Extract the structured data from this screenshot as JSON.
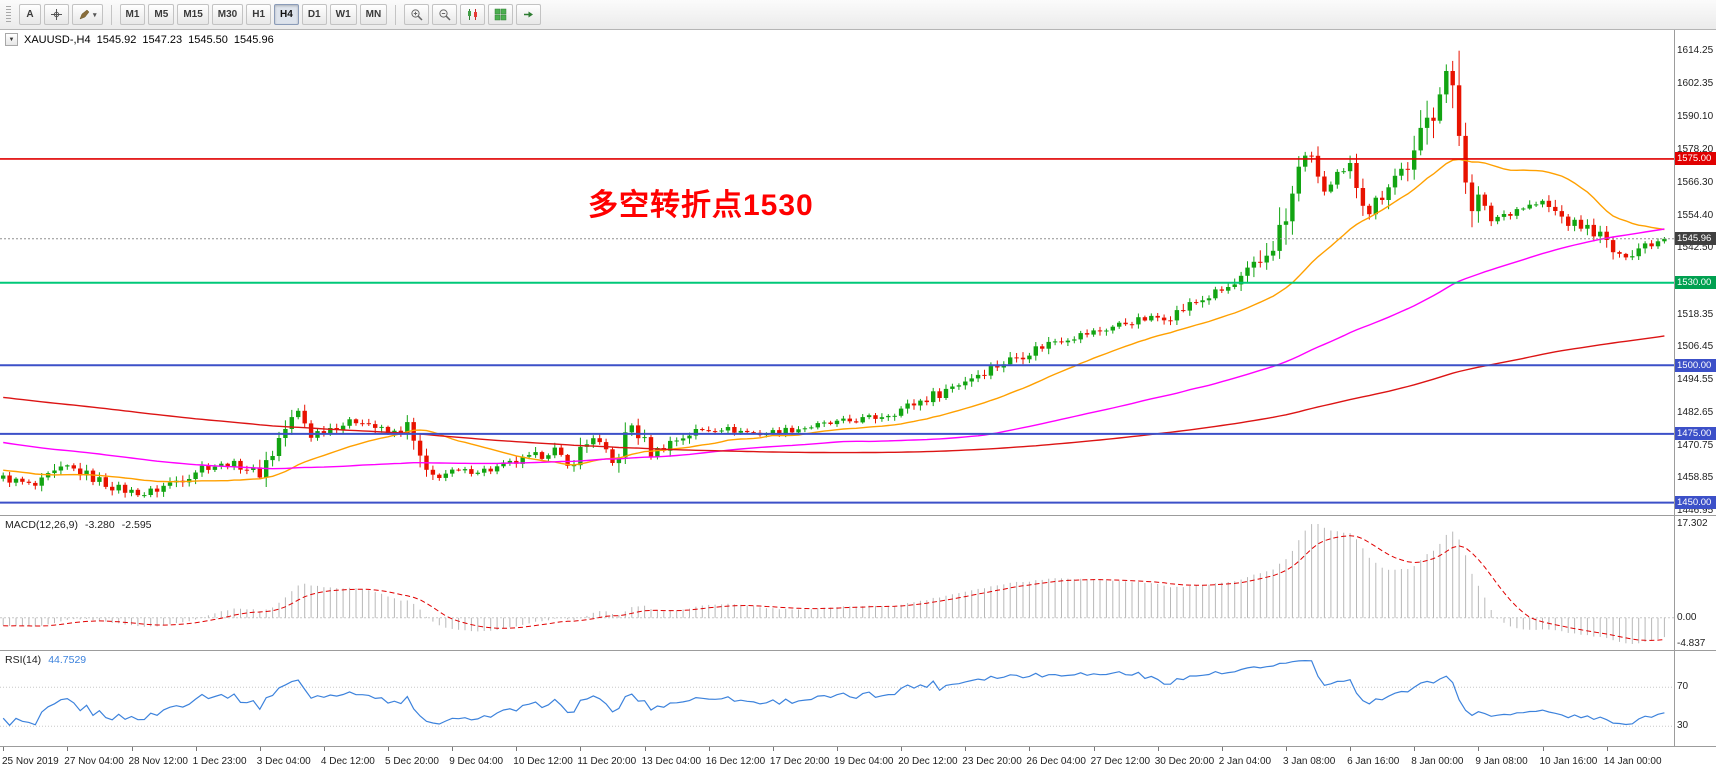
{
  "toolbar": {
    "text_tool_label": "A",
    "timeframes": [
      {
        "label": "M1",
        "active": false
      },
      {
        "label": "M5",
        "active": false
      },
      {
        "label": "M15",
        "active": false
      },
      {
        "label": "M30",
        "active": false
      },
      {
        "label": "H1",
        "active": false
      },
      {
        "label": "H4",
        "active": true
      },
      {
        "label": "D1",
        "active": false
      },
      {
        "label": "W1",
        "active": false
      },
      {
        "label": "MN",
        "active": false
      }
    ]
  },
  "chart": {
    "symbol_header": {
      "symbol": "XAUUSD-,H4",
      "open": "1545.92",
      "high": "1547.23",
      "low": "1545.50",
      "close": "1545.96"
    },
    "annotation": {
      "text": "多空转折点1530",
      "color": "#FF0000"
    }
  },
  "macd": {
    "header_label": "MACD(12,26,9)",
    "value_main": "-3.280",
    "value_signal": "-2.595",
    "axis_labels": [
      {
        "text": "17.302",
        "value": 17.302
      },
      {
        "text": "0.00",
        "value": 0
      },
      {
        "text": "-4.837",
        "value": -4.837
      }
    ],
    "colors": {
      "histogram": "#B8B8B8",
      "signal": "#E00000"
    }
  },
  "rsi": {
    "header_label": "RSI(14)",
    "value": "44.7529",
    "axis_labels": [
      {
        "text": "70",
        "value": 70
      },
      {
        "text": "30",
        "value": 30
      }
    ],
    "color": "#3C82DC",
    "level_color": "#C8C8C8"
  },
  "time_axis": {
    "step": 10,
    "labels": [
      "25 Nov 2019",
      "27 Nov 04:00",
      "28 Nov 12:00",
      "1 Dec 23:00",
      "3 Dec 04:00",
      "4 Dec 12:00",
      "5 Dec 20:00",
      "9 Dec 04:00",
      "10 Dec 12:00",
      "11 Dec 20:00",
      "13 Dec 04:00",
      "16 Dec 12:00",
      "17 Dec 20:00",
      "19 Dec 04:00",
      "20 Dec 12:00",
      "23 Dec 20:00",
      "26 Dec 04:00",
      "27 Dec 12:00",
      "30 Dec 20:00",
      "2 Jan 04:00",
      "3 Jan 08:00",
      "6 Jan 16:00",
      "8 Jan 00:00",
      "9 Jan 08:00",
      "10 Jan 16:00",
      "14 Jan 00:00"
    ]
  },
  "chart_data": {
    "type": "candlestick",
    "symbol": "XAUUSD",
    "timeframe": "H4",
    "last_price": 1545.96,
    "candle_count": 260,
    "colors": {
      "up": "#12A412",
      "down": "#E81200"
    },
    "price_axis": {
      "range": {
        "min": 1445.5,
        "max": 1621.9
      },
      "labels": [
        "1614.25",
        "1602.35",
        "1590.10",
        "1578.20",
        "1566.30",
        "1554.40",
        "1542.50",
        "1518.35",
        "1506.45",
        "1494.55",
        "1482.65",
        "1470.75",
        "1458.85",
        "1446.95"
      ],
      "badges": [
        {
          "text": "1575.00",
          "price": 1575.0,
          "color": "#E00000"
        },
        {
          "text": "1545.96",
          "price": 1545.96,
          "color": "#404040"
        },
        {
          "text": "1530.00",
          "price": 1530.0,
          "color": "#00A050"
        },
        {
          "text": "1500.00",
          "price": 1500.0,
          "color": "#3C50C8"
        },
        {
          "text": "1475.00",
          "price": 1475.0,
          "color": "#3C50C8"
        },
        {
          "text": "1450.00",
          "price": 1450.0,
          "color": "#3C50C8"
        }
      ]
    },
    "levels": [
      {
        "price": 1575.0,
        "color": "#E00000",
        "width": 1.6,
        "dash": ""
      },
      {
        "price": 1530.0,
        "color": "#00C878",
        "width": 2,
        "dash": ""
      },
      {
        "price": 1500.0,
        "color": "#3C50C8",
        "width": 2,
        "dash": ""
      },
      {
        "price": 1475.0,
        "color": "#3C50C8",
        "width": 2,
        "dash": ""
      },
      {
        "price": 1450.0,
        "color": "#3C50C8",
        "width": 2,
        "dash": ""
      },
      {
        "price": 1545.96,
        "color": "#909090",
        "width": 1,
        "dash": "2 2"
      }
    ],
    "moving_averages": [
      {
        "name": "ma-fast",
        "period": 24,
        "color": "#FFA000"
      },
      {
        "name": "ma-mid",
        "period": 89,
        "color": "#FF00FF"
      },
      {
        "name": "ma-slow",
        "period": 200,
        "color": "#DC1414"
      }
    ],
    "price_path": [
      [
        -200,
        1512
      ],
      [
        -160,
        1506
      ],
      [
        -120,
        1497
      ],
      [
        -80,
        1484
      ],
      [
        -50,
        1473
      ],
      [
        -20,
        1464
      ],
      [
        0,
        1459
      ],
      [
        5,
        1456
      ],
      [
        10,
        1463
      ],
      [
        14,
        1459
      ],
      [
        18,
        1455
      ],
      [
        22,
        1453
      ],
      [
        27,
        1458
      ],
      [
        31,
        1463
      ],
      [
        36,
        1464
      ],
      [
        40,
        1461
      ],
      [
        44,
        1477
      ],
      [
        46,
        1483
      ],
      [
        48,
        1475
      ],
      [
        52,
        1478
      ],
      [
        56,
        1480
      ],
      [
        60,
        1475
      ],
      [
        63,
        1477
      ],
      [
        66,
        1459
      ],
      [
        70,
        1461
      ],
      [
        76,
        1462
      ],
      [
        82,
        1466
      ],
      [
        86,
        1469
      ],
      [
        88,
        1463
      ],
      [
        92,
        1474
      ],
      [
        95,
        1464
      ],
      [
        98,
        1478
      ],
      [
        101,
        1468
      ],
      [
        104,
        1472
      ],
      [
        108,
        1476
      ],
      [
        112,
        1477
      ],
      [
        118,
        1475
      ],
      [
        124,
        1477
      ],
      [
        130,
        1479
      ],
      [
        136,
        1481
      ],
      [
        140,
        1484
      ],
      [
        146,
        1490
      ],
      [
        152,
        1497
      ],
      [
        158,
        1503
      ],
      [
        164,
        1509
      ],
      [
        170,
        1512
      ],
      [
        176,
        1516
      ],
      [
        182,
        1518
      ],
      [
        186,
        1523
      ],
      [
        192,
        1529
      ],
      [
        196,
        1537
      ],
      [
        200,
        1552
      ],
      [
        203,
        1578
      ],
      [
        205,
        1570
      ],
      [
        206,
        1563
      ],
      [
        210,
        1572
      ],
      [
        213,
        1556
      ],
      [
        216,
        1567
      ],
      [
        220,
        1575
      ],
      [
        224,
        1601
      ],
      [
        225,
        1607
      ],
      [
        227,
        1585
      ],
      [
        229,
        1562
      ],
      [
        232,
        1553
      ],
      [
        236,
        1557
      ],
      [
        240,
        1559
      ],
      [
        244,
        1552
      ],
      [
        248,
        1549
      ],
      [
        252,
        1539
      ],
      [
        256,
        1544
      ],
      [
        259,
        1545.96
      ]
    ]
  }
}
